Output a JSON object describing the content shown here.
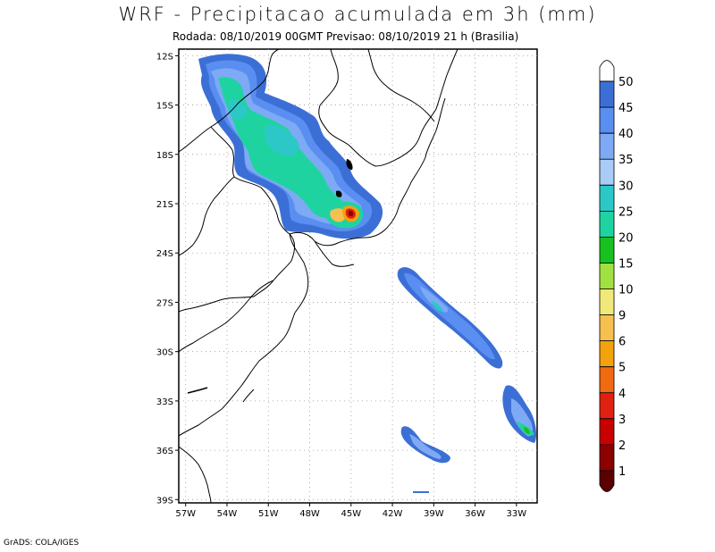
{
  "title": "WRF - Precipitacao acumulada em 3h (mm)",
  "subtitle": "Rodada: 08/10/2019 00GMT Previsao: 08/10/2019 21 h (Brasilia)",
  "credit": "GrADS: COLA/IGES",
  "map": {
    "lon_range": [
      -57.5,
      -31.5
    ],
    "lat_range": [
      -39.2,
      -11.6
    ],
    "lat_ticks": [
      "12S",
      "15S",
      "18S",
      "21S",
      "24S",
      "27S",
      "30S",
      "33S",
      "36S",
      "39S"
    ],
    "lon_ticks": [
      "57W",
      "54W",
      "51W",
      "48W",
      "45W",
      "42W",
      "39W",
      "36W",
      "33W"
    ],
    "grid": true
  },
  "colorbar": {
    "labels": [
      "1",
      "2",
      "3",
      "4",
      "5",
      "6",
      "9",
      "10",
      "15",
      "20",
      "25",
      "30",
      "35",
      "40",
      "45",
      "50"
    ],
    "colors": [
      "#ffffff",
      "#3c6fd6",
      "#5a8ef0",
      "#7eaaf5",
      "#a8ccf7",
      "#2cc8c8",
      "#1fd3a0",
      "#18c020",
      "#a0e040",
      "#f0e878",
      "#f6c050",
      "#f4a10e",
      "#f06a10",
      "#e02010",
      "#c80000",
      "#8c0000",
      "#5a0000"
    ]
  }
}
